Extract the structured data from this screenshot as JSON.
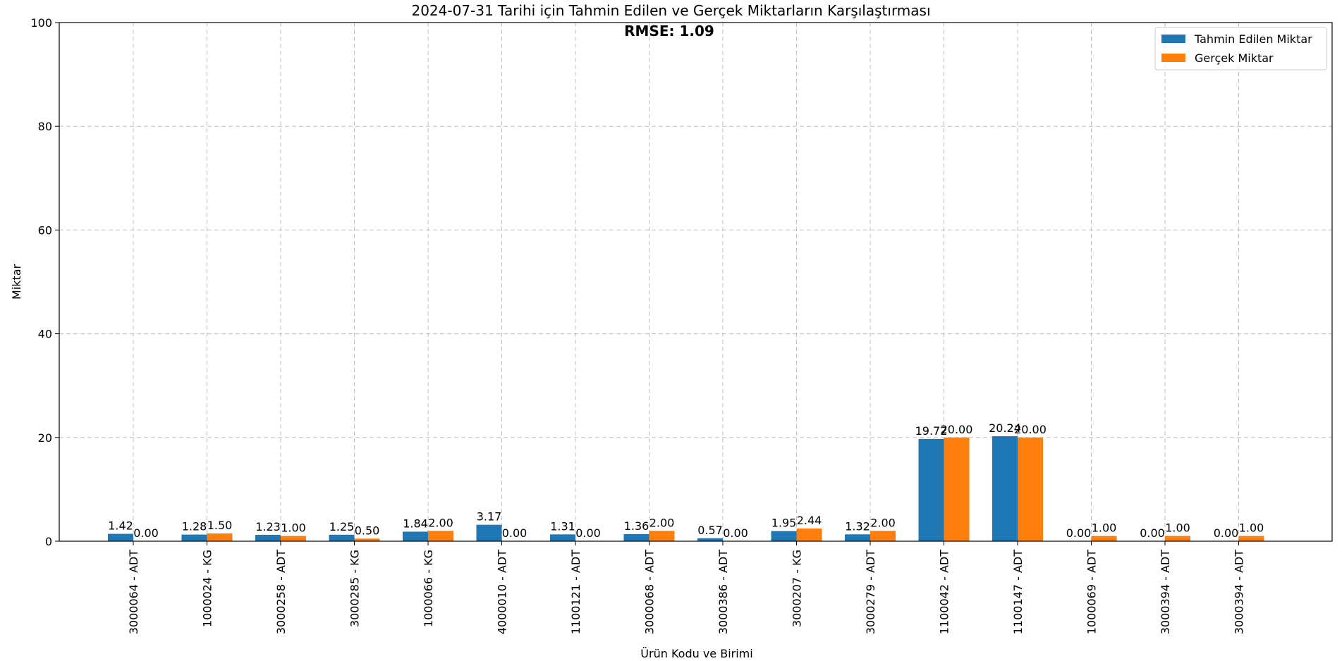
{
  "chart_data": {
    "type": "bar",
    "title": "2024-07-31 Tarihi için Tahmin Edilen ve Gerçek Miktarların Karşılaştırması",
    "subtitle": "RMSE: 1.09",
    "xlabel": "Ürün Kodu ve Birimi",
    "ylabel": "Miktar",
    "ylim": [
      0,
      100
    ],
    "yticks": [
      0,
      20,
      40,
      60,
      80,
      100
    ],
    "grid": true,
    "legend_position": "top-right",
    "categories": [
      "3000064 - ADT",
      "1000024 - KG",
      "3000258 - ADT",
      "3000285 - KG",
      "1000066 - KG",
      "4000010 - ADT",
      "1100121 - ADT",
      "3000068 - ADT",
      "3000386 - ADT",
      "3000207 - KG",
      "3000279 - ADT",
      "1100042 - ADT",
      "1100147 - ADT",
      "1000069 - ADT",
      "3000394 - ADT",
      "3000394 - ADT"
    ],
    "series": [
      {
        "name": "Tahmin Edilen Miktar",
        "color": "#1f77b4",
        "values": [
          1.42,
          1.28,
          1.23,
          1.25,
          1.84,
          3.17,
          1.31,
          1.36,
          0.57,
          1.95,
          1.32,
          19.72,
          20.24,
          0.0,
          0.0,
          0.0
        ],
        "labels": [
          "1.42",
          "1.28",
          "1.23",
          "1.25",
          "1.84",
          "3.17",
          "1.31",
          "1.36",
          "0.57",
          "1.95",
          "1.32",
          "19.72",
          "20.24",
          "0.00",
          "0.00",
          "0.00"
        ]
      },
      {
        "name": "Gerçek Miktar",
        "color": "#ff7f0e",
        "values": [
          0.0,
          1.5,
          1.0,
          0.5,
          2.0,
          0.0,
          0.0,
          2.0,
          0.0,
          2.44,
          2.0,
          20.0,
          20.0,
          1.0,
          1.0,
          1.0
        ],
        "labels": [
          "0.00",
          "1.50",
          "1.00",
          "0.50",
          "2.00",
          "0.00",
          "0.00",
          "2.00",
          "0.00",
          "2.44",
          "2.00",
          "20.00",
          "20.00",
          "1.00",
          "1.00",
          "1.00"
        ]
      }
    ]
  }
}
